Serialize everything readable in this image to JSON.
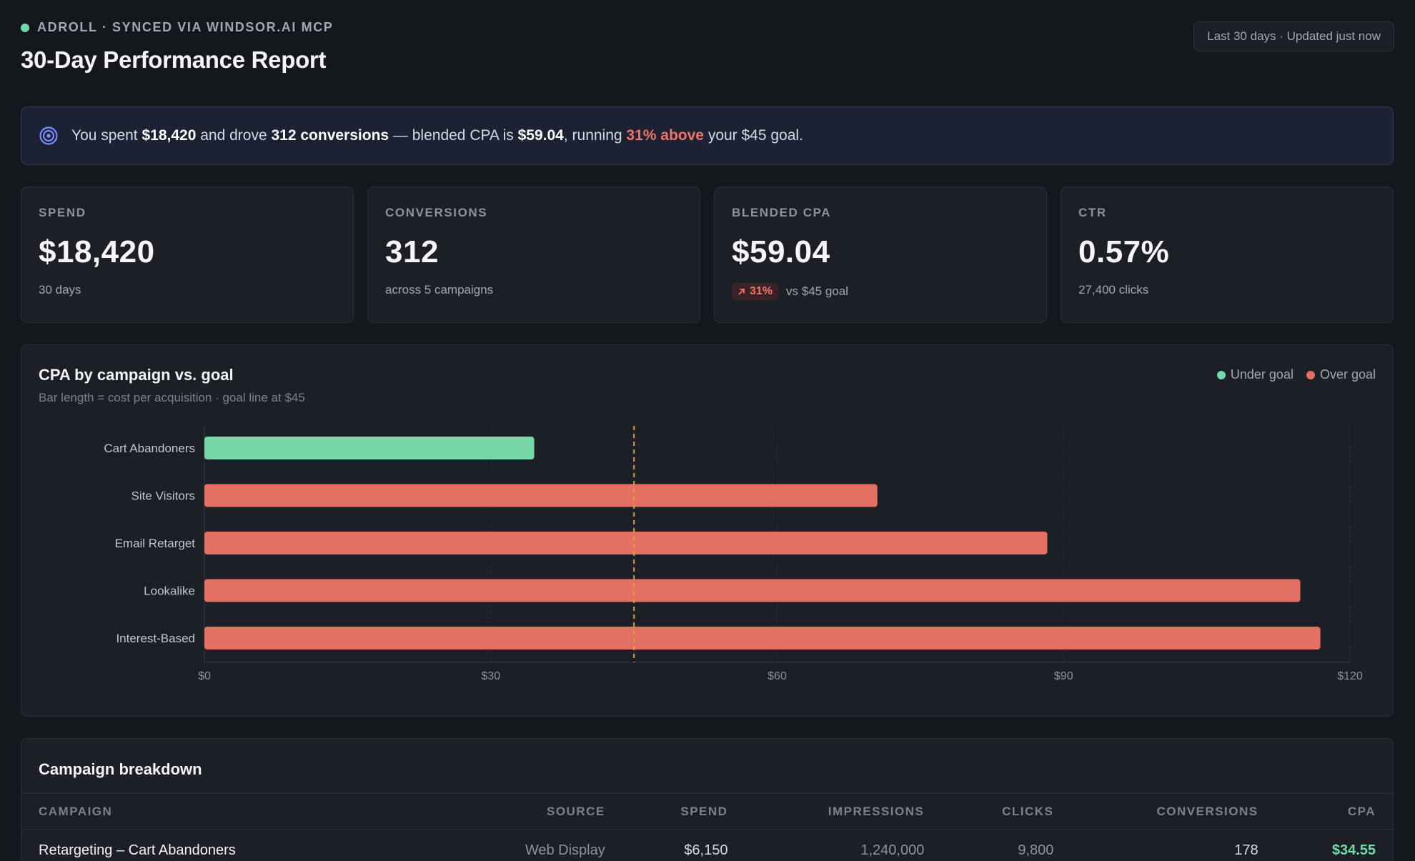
{
  "header": {
    "eyebrow": "ADROLL · SYNCED VIA WINDSOR.AI MCP",
    "title": "30-Day Performance Report",
    "range": "Last 30 days · Updated just now"
  },
  "insight": {
    "p1": "You spent ",
    "spend": "$18,420",
    "p2": " and drove ",
    "conversions": "312 conversions",
    "p3": " — blended CPA is ",
    "cpa": "$59.04",
    "p4": ", running ",
    "above": "31% above",
    "p5": " your $45 goal."
  },
  "kpis": [
    {
      "label": "SPEND",
      "value": "$18,420",
      "sub": "30 days"
    },
    {
      "label": "CONVERSIONS",
      "value": "312",
      "sub": "across 5 campaigns"
    },
    {
      "label": "BLENDED CPA",
      "value": "$59.04",
      "delta": "31%",
      "sub": "vs $45 goal"
    },
    {
      "label": "CTR",
      "value": "0.57%",
      "sub": "27,400 clicks"
    }
  ],
  "chart": {
    "title": "CPA by campaign vs. goal",
    "subtitle": "Bar length = cost per acquisition · goal line at $45",
    "legend_under": "Under goal",
    "legend_over": "Over goal"
  },
  "colors": {
    "under": "#76d8a8",
    "over": "#e37063",
    "goal": "#d6a24a",
    "accent": "#7b8cff"
  },
  "chart_data": {
    "type": "bar",
    "orientation": "horizontal",
    "categories": [
      "Cart Abandoners",
      "Site Visitors",
      "Email Retarget",
      "Lookalike",
      "Interest-Based"
    ],
    "values": [
      34.55,
      70.5,
      88.3,
      114.8,
      116.9
    ],
    "status": [
      "under",
      "over",
      "over",
      "over",
      "over"
    ],
    "goal": 45,
    "xlim": [
      0,
      120
    ],
    "xticks": [
      0,
      30,
      60,
      90,
      120
    ],
    "xtick_labels": [
      "$0",
      "$30",
      "$60",
      "$90",
      "$120"
    ],
    "grid": true,
    "legend": "top-right"
  },
  "table": {
    "title": "Campaign breakdown",
    "columns": [
      "CAMPAIGN",
      "SOURCE",
      "SPEND",
      "IMPRESSIONS",
      "CLICKS",
      "CONVERSIONS",
      "CPA"
    ],
    "rows": [
      [
        "Retargeting – Cart Abandoners",
        "Web Display",
        "$6,150",
        "1,240,000",
        "9,800",
        "178",
        "$34.55"
      ]
    ]
  }
}
